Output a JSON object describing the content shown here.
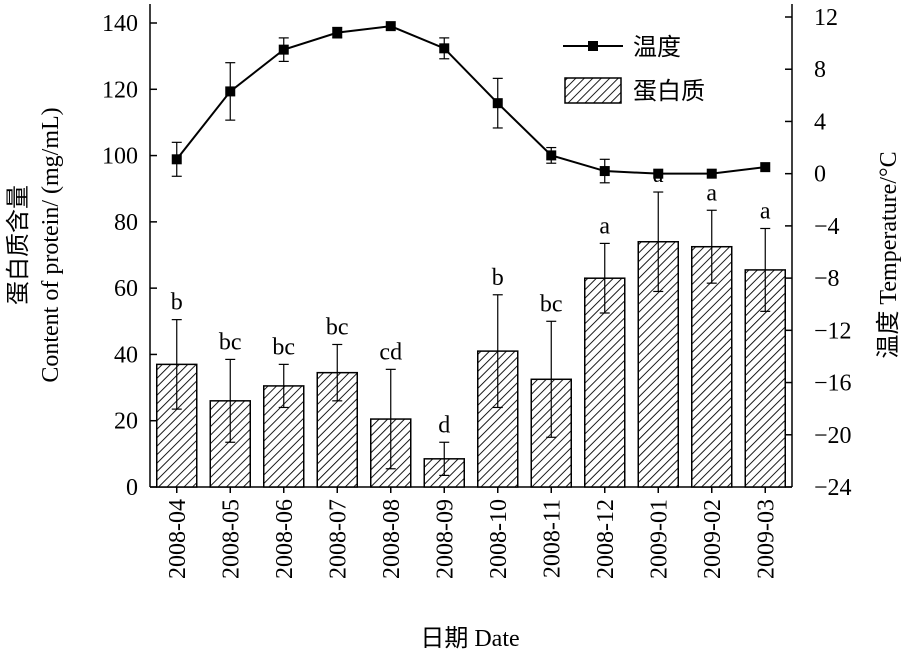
{
  "chart_data": {
    "type": "bar",
    "categories": [
      "2008-04",
      "2008-05",
      "2008-06",
      "2008-07",
      "2008-08",
      "2008-09",
      "2008-10",
      "2008-11",
      "2008-12",
      "2009-01",
      "2009-02",
      "2009-03"
    ],
    "xlabel": "日期 Date",
    "ylabel_left_cn": "蛋白质含量",
    "ylabel_left_en": "Content of protein/ (mg/mL)",
    "ylabel_right_cn": "温度",
    "ylabel_right_en": "Temperature/°C",
    "ylim_left": [
      0,
      140
    ],
    "yticks_left": [
      0,
      20,
      40,
      60,
      80,
      100,
      120,
      140
    ],
    "ylim_right": [
      -24,
      12
    ],
    "yticks_right": [
      -24,
      -20,
      -16,
      -12,
      -8,
      -4,
      0,
      4,
      8,
      12
    ],
    "legend_position": "top-right",
    "series": [
      {
        "name": "蛋白质",
        "kind": "bar",
        "pattern": "diagonal-hatch",
        "values": [
          37,
          26,
          30.5,
          34.5,
          20.5,
          8.5,
          41,
          32.5,
          63,
          74,
          72.5,
          65.5
        ],
        "errors": [
          13.5,
          12.5,
          6.5,
          8.5,
          15,
          5,
          17,
          17.5,
          10.5,
          15,
          11,
          12.5
        ],
        "labels": [
          "b",
          "bc",
          "bc",
          "bc",
          "cd",
          "d",
          "b",
          "bc",
          "a",
          "a",
          "a",
          "a"
        ]
      },
      {
        "name": "温度",
        "kind": "line",
        "marker": "square",
        "values": [
          1.1,
          6.3,
          9.5,
          10.8,
          11.3,
          9.6,
          5.4,
          1.4,
          0.2,
          0.0,
          0.0,
          0.5
        ],
        "errors": [
          1.3,
          2.2,
          0.9,
          0.4,
          0,
          0.8,
          1.9,
          0.6,
          0.9,
          0,
          0,
          0
        ]
      }
    ]
  }
}
